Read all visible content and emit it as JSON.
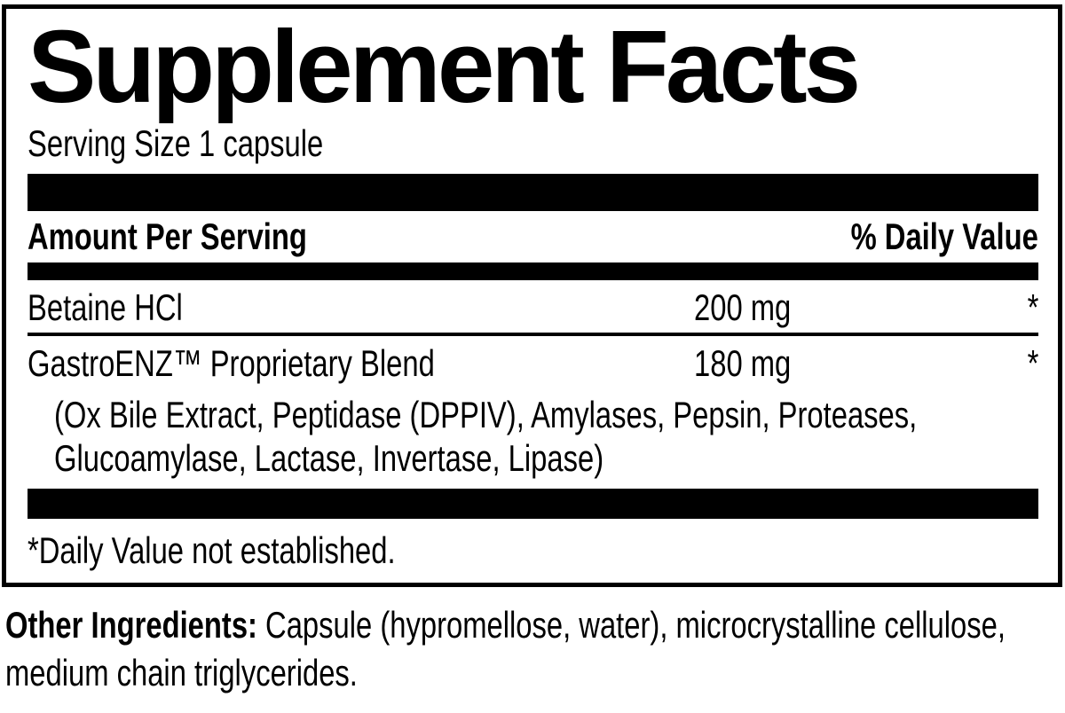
{
  "panel": {
    "title": "Supplement Facts",
    "serving_size": "Serving Size 1 capsule",
    "header": {
      "amount_label": "Amount Per Serving",
      "dv_label": "% Daily Value"
    },
    "rows": [
      {
        "name": "Betaine HCl",
        "amount": "200 mg",
        "daily_value": "*"
      },
      {
        "name": "GastroENZ™ Proprietary Blend",
        "amount": "180 mg",
        "daily_value": "*",
        "sub_lines": [
          "(Ox Bile Extract, Peptidase (DPPIV), Amylases, Pepsin, Proteases,",
          "Glucoamylase, Lactase, Invertase, Lipase)"
        ]
      }
    ],
    "footnote": "*Daily Value not established."
  },
  "other_ingredients": {
    "label": "Other Ingredients:",
    "line1_rest": " Capsule (hypromellose, water), microcrystalline cellulose,",
    "line2": "medium chain triglycerides."
  },
  "colors": {
    "text": "#000000",
    "background": "#ffffff"
  }
}
